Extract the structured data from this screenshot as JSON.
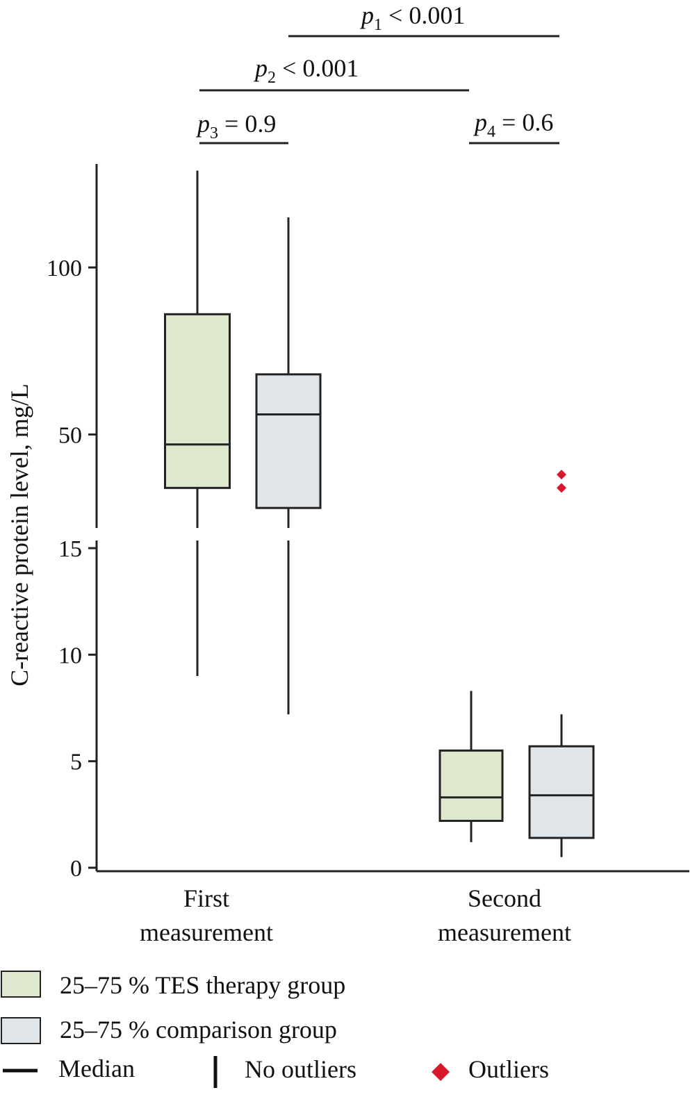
{
  "chart_data": {
    "type": "box",
    "ylabel": "C-reactive protein level, mg/L",
    "y_axis": {
      "broken": true,
      "lower_segment": {
        "ylim": [
          0,
          15
        ],
        "ticks": [
          0,
          5,
          10,
          15
        ]
      },
      "upper_segment": {
        "ticks": [
          50,
          100
        ]
      }
    },
    "categories": [
      {
        "line1": "First",
        "line2": "measurement"
      },
      {
        "line1": "Second",
        "line2": "measurement"
      }
    ],
    "series": [
      {
        "name": "25–75 % TES therapy group",
        "color": "#dde8cf",
        "boxes": [
          {
            "whisker_low": 9,
            "q1": 34,
            "median": 47,
            "q3": 86,
            "whisker_high": 129
          },
          {
            "whisker_low": 1.2,
            "q1": 2.2,
            "median": 3.3,
            "q3": 5.5,
            "whisker_high": 8.3
          }
        ]
      },
      {
        "name": "25–75 % comparison group",
        "color": "#e0e5ea",
        "boxes": [
          {
            "whisker_low": 7.2,
            "q1": 28,
            "median": 56,
            "q3": 68,
            "whisker_high": 115
          },
          {
            "whisker_low": 0.5,
            "q1": 1.4,
            "median": 3.4,
            "q3": 5.7,
            "whisker_high": 7.2
          }
        ]
      }
    ],
    "outliers": [
      {
        "category": 1,
        "series": 1,
        "values": [
          38,
          34
        ]
      }
    ],
    "significance": [
      {
        "p": "p",
        "sub": "1",
        "op": "<",
        "value": "0.001"
      },
      {
        "p": "p",
        "sub": "2",
        "op": "<",
        "value": "0.001"
      },
      {
        "p": "p",
        "sub": "3",
        "op": "=",
        "value": "0.9"
      },
      {
        "p": "p",
        "sub": "4",
        "op": "=",
        "value": "0.6"
      }
    ],
    "legend": {
      "items": [
        "25–75 % TES therapy group",
        "25–75 % comparison group"
      ],
      "median_label": "Median",
      "no_outliers_label": "No outliers",
      "outliers_label": "Outliers",
      "outlier_color": "#d7182a"
    }
  }
}
